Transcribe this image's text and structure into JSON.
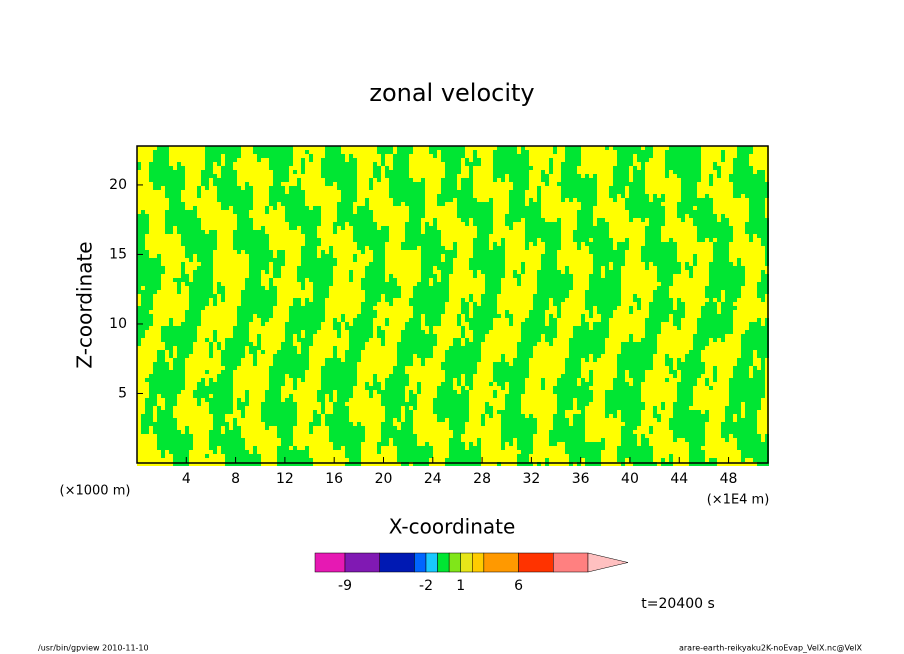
{
  "chart_data": {
    "type": "contour",
    "title": "zonal velocity",
    "x_label": "X-coordinate",
    "y_label": "Z-coordinate",
    "x_unit": "(×1E4 m)",
    "y_unit": "(×1000 m)",
    "xlim": [
      0,
      51.2
    ],
    "ylim": [
      0,
      22.8
    ],
    "xticks": [
      4,
      8,
      12,
      16,
      20,
      24,
      28,
      32,
      36,
      40,
      44,
      48
    ],
    "yticks": [
      5,
      10,
      15,
      20
    ],
    "colorbar": {
      "levels": [
        -9,
        -6,
        -3,
        -2,
        -1,
        0,
        1,
        2,
        3,
        6,
        9,
        12
      ],
      "colors": [
        "#e619b3",
        "#8019b3",
        "#0019b3",
        "#0066ff",
        "#19c8ff",
        "#00e633",
        "#80e619",
        "#e6e619",
        "#ffcc00",
        "#ff9900",
        "#ff3300",
        "#ff8080",
        "#ffc0c0"
      ],
      "ticks": [
        -9,
        -2,
        1,
        6
      ]
    },
    "annotation": "t=20400 s",
    "footer_left": "/usr/bin/gpview   2010-11-10",
    "footer_right": "arare-earth-reikyaku2K-noEvap_VelX.nc@VelX"
  }
}
